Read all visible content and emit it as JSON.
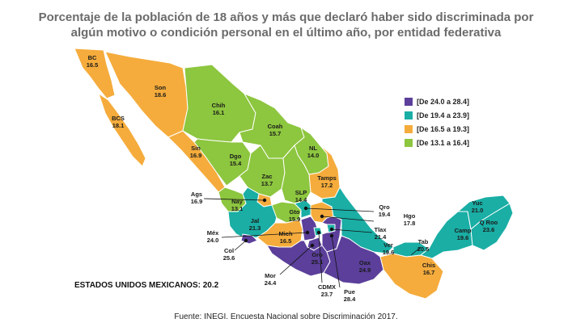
{
  "title_line1": "Porcentaje de la población de 18 años y más que declaró haber sido discriminada por",
  "title_line2": "algún motivo o condición personal en el último año, por entidad federativa",
  "legend": [
    {
      "label": "[De 24.0 a 28.4]",
      "color": "#5b3f9a"
    },
    {
      "label": "[De 19.4 a 23.9]",
      "color": "#1aaea5"
    },
    {
      "label": "[De 16.5 a 19.3]",
      "color": "#f5ac3c"
    },
    {
      "label": "[De 13.1 a 16.4]",
      "color": "#8dc63f"
    }
  ],
  "national_label": "ESTADOS UNIDOS MEXICANOS: 20.2",
  "source": "Fuente: INEGI. Encuesta Nacional sobre Discriminación 2017.",
  "states": {
    "bc": {
      "code": "BC",
      "value": "16.5",
      "color": "#f5ac3c"
    },
    "bcs": {
      "code": "BCS",
      "value": "18.1",
      "color": "#f5ac3c"
    },
    "son": {
      "code": "Son",
      "value": "18.6",
      "color": "#f5ac3c"
    },
    "chih": {
      "code": "Chih",
      "value": "16.1",
      "color": "#8dc63f"
    },
    "coah": {
      "code": "Coah",
      "value": "15.7",
      "color": "#8dc63f"
    },
    "nl": {
      "code": "NL",
      "value": "14.0",
      "color": "#8dc63f"
    },
    "sin": {
      "code": "Sin",
      "value": "16.9",
      "color": "#f5ac3c"
    },
    "dgo": {
      "code": "Dgo",
      "value": "15.4",
      "color": "#8dc63f"
    },
    "tamps": {
      "code": "Tamps",
      "value": "17.2",
      "color": "#f5ac3c"
    },
    "zac": {
      "code": "Zac",
      "value": "13.7",
      "color": "#8dc63f"
    },
    "slp": {
      "code": "SLP",
      "value": "14.4",
      "color": "#8dc63f"
    },
    "ags": {
      "code": "Ags",
      "value": "16.9",
      "color": "#f5ac3c"
    },
    "nay": {
      "code": "Nay",
      "value": "13.1",
      "color": "#8dc63f"
    },
    "jal": {
      "code": "Jal",
      "value": "21.3",
      "color": "#1aaea5"
    },
    "gto": {
      "code": "Gto",
      "value": "15.9",
      "color": "#8dc63f"
    },
    "qro": {
      "code": "Qro",
      "value": "19.4",
      "color": "#1aaea5"
    },
    "hgo": {
      "code": "Hgo",
      "value": "17.8",
      "color": "#f5ac3c"
    },
    "mex": {
      "code": "Méx",
      "value": "24.0",
      "color": "#5b3f9a"
    },
    "mich": {
      "code": "Mich",
      "value": "16.5",
      "color": "#f5ac3c"
    },
    "col": {
      "code": "Col",
      "value": "25.6",
      "color": "#5b3f9a"
    },
    "tlax": {
      "code": "Tlax",
      "value": "21.4",
      "color": "#1aaea5"
    },
    "ver": {
      "code": "Ver",
      "value": "19.6",
      "color": "#1aaea5"
    },
    "gro": {
      "code": "Gro",
      "value": "25.1",
      "color": "#5b3f9a"
    },
    "oax": {
      "code": "Oax",
      "value": "24.9",
      "color": "#5b3f9a"
    },
    "mor": {
      "code": "Mor",
      "value": "24.4",
      "color": "#5b3f9a"
    },
    "cdmx": {
      "code": "CDMX",
      "value": "23.7",
      "color": "#1aaea5"
    },
    "pue": {
      "code": "Pue",
      "value": "28.4",
      "color": "#5b3f9a"
    },
    "tab": {
      "code": "Tab",
      "value": "20.5",
      "color": "#1aaea5"
    },
    "chis": {
      "code": "Chis",
      "value": "16.7",
      "color": "#f5ac3c"
    },
    "camp": {
      "code": "Camp",
      "value": "19.6",
      "color": "#1aaea5"
    },
    "yuc": {
      "code": "Yuc",
      "value": "21.0",
      "color": "#1aaea5"
    },
    "qroo": {
      "code": "Q Roo",
      "value": "23.6",
      "color": "#1aaea5"
    }
  }
}
